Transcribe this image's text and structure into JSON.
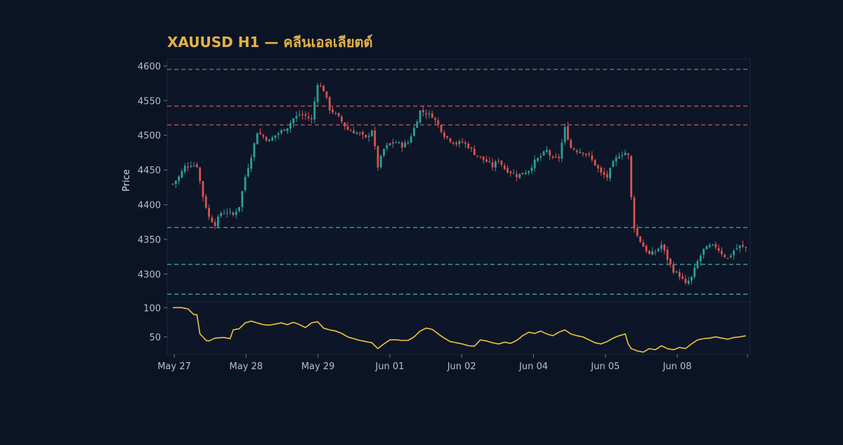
{
  "chart_data": {
    "type": "candlestick",
    "title": "XAUUSD H1 — คลีนเอลเลียตต์",
    "ylabel": "Price",
    "ylim": [
      4260,
      4610
    ],
    "yticks": [
      4300,
      4350,
      4400,
      4450,
      4500,
      4550,
      4600
    ],
    "resistance_levels": [
      4595,
      4542,
      4515
    ],
    "support_levels": [
      4367,
      4314,
      4271
    ],
    "colors": {
      "background": "#0b1424",
      "panel": "#0c1628",
      "up": "#2aa198",
      "down": "#d9534f",
      "resistance": "#c0504d",
      "support": "#3a9d95",
      "oscillator": "#f2c23a",
      "title": "#e2b24a",
      "text": "#b5bfcc"
    },
    "x_dates": [
      "May 27",
      "May 28",
      "May 29",
      "Jun 01",
      "Jun 02",
      "Jun 04",
      "Jun 05",
      "Jun 08"
    ],
    "close_path": [
      [
        0,
        4430
      ],
      [
        2,
        4440
      ],
      [
        4,
        4455
      ],
      [
        6,
        4458
      ],
      [
        8,
        4456
      ],
      [
        10,
        4412
      ],
      [
        12,
        4382
      ],
      [
        14,
        4372
      ],
      [
        16,
        4388
      ],
      [
        18,
        4390
      ],
      [
        20,
        4385
      ],
      [
        22,
        4398
      ],
      [
        24,
        4440
      ],
      [
        26,
        4470
      ],
      [
        28,
        4505
      ],
      [
        30,
        4498
      ],
      [
        32,
        4492
      ],
      [
        34,
        4500
      ],
      [
        36,
        4506
      ],
      [
        38,
        4512
      ],
      [
        40,
        4524
      ],
      [
        42,
        4530
      ],
      [
        44,
        4528
      ],
      [
        46,
        4522
      ],
      [
        48,
        4575
      ],
      [
        50,
        4565
      ],
      [
        52,
        4538
      ],
      [
        54,
        4530
      ],
      [
        56,
        4520
      ],
      [
        58,
        4508
      ],
      [
        60,
        4505
      ],
      [
        62,
        4502
      ],
      [
        64,
        4495
      ],
      [
        66,
        4508
      ],
      [
        68,
        4455
      ],
      [
        70,
        4480
      ],
      [
        72,
        4488
      ],
      [
        74,
        4490
      ],
      [
        76,
        4485
      ],
      [
        78,
        4490
      ],
      [
        80,
        4510
      ],
      [
        82,
        4535
      ],
      [
        84,
        4532
      ],
      [
        86,
        4528
      ],
      [
        88,
        4515
      ],
      [
        90,
        4500
      ],
      [
        92,
        4493
      ],
      [
        94,
        4488
      ],
      [
        96,
        4490
      ],
      [
        98,
        4484
      ],
      [
        100,
        4474
      ],
      [
        102,
        4468
      ],
      [
        104,
        4462
      ],
      [
        106,
        4455
      ],
      [
        108,
        4465
      ],
      [
        110,
        4452
      ],
      [
        112,
        4447
      ],
      [
        114,
        4442
      ],
      [
        116,
        4445
      ],
      [
        118,
        4450
      ],
      [
        120,
        4462
      ],
      [
        122,
        4470
      ],
      [
        124,
        4478
      ],
      [
        126,
        4465
      ],
      [
        128,
        4468
      ],
      [
        130,
        4510
      ],
      [
        132,
        4482
      ],
      [
        134,
        4478
      ],
      [
        136,
        4476
      ],
      [
        138,
        4470
      ],
      [
        140,
        4458
      ],
      [
        142,
        4445
      ],
      [
        144,
        4440
      ],
      [
        146,
        4460
      ],
      [
        148,
        4472
      ],
      [
        150,
        4475
      ],
      [
        151,
        4470
      ],
      [
        152,
        4410
      ],
      [
        153,
        4368
      ],
      [
        154,
        4355
      ],
      [
        156,
        4340
      ],
      [
        158,
        4328
      ],
      [
        160,
        4332
      ],
      [
        162,
        4342
      ],
      [
        164,
        4322
      ],
      [
        166,
        4305
      ],
      [
        168,
        4298
      ],
      [
        170,
        4285
      ],
      [
        172,
        4295
      ],
      [
        174,
        4318
      ],
      [
        176,
        4335
      ],
      [
        178,
        4340
      ],
      [
        180,
        4340
      ],
      [
        182,
        4330
      ],
      [
        184,
        4322
      ],
      [
        186,
        4334
      ],
      [
        188,
        4340
      ],
      [
        190,
        4338
      ]
    ],
    "oscillator": {
      "ylim": [
        20,
        110
      ],
      "yticks": [
        50,
        100
      ],
      "path": [
        [
          0,
          100
        ],
        [
          3,
          100
        ],
        [
          5,
          98
        ],
        [
          7,
          88
        ],
        [
          8,
          88
        ],
        [
          9,
          55
        ],
        [
          10,
          50
        ],
        [
          11,
          44
        ],
        [
          12,
          43
        ],
        [
          14,
          48
        ],
        [
          17,
          49
        ],
        [
          19,
          47
        ],
        [
          20,
          62
        ],
        [
          22,
          64
        ],
        [
          24,
          74
        ],
        [
          26,
          77
        ],
        [
          28,
          74
        ],
        [
          30,
          71
        ],
        [
          32,
          70
        ],
        [
          34,
          72
        ],
        [
          36,
          74
        ],
        [
          38,
          71
        ],
        [
          40,
          75
        ],
        [
          42,
          71
        ],
        [
          44,
          66
        ],
        [
          46,
          74
        ],
        [
          48,
          76
        ],
        [
          50,
          65
        ],
        [
          52,
          62
        ],
        [
          54,
          60
        ],
        [
          56,
          56
        ],
        [
          58,
          50
        ],
        [
          60,
          47
        ],
        [
          62,
          44
        ],
        [
          64,
          42
        ],
        [
          66,
          40
        ],
        [
          68,
          30
        ],
        [
          70,
          38
        ],
        [
          72,
          45
        ],
        [
          74,
          45
        ],
        [
          76,
          44
        ],
        [
          78,
          44
        ],
        [
          80,
          50
        ],
        [
          82,
          60
        ],
        [
          84,
          65
        ],
        [
          86,
          63
        ],
        [
          88,
          55
        ],
        [
          90,
          48
        ],
        [
          92,
          42
        ],
        [
          94,
          40
        ],
        [
          96,
          38
        ],
        [
          98,
          35
        ],
        [
          100,
          34
        ],
        [
          102,
          45
        ],
        [
          104,
          43
        ],
        [
          106,
          40
        ],
        [
          108,
          38
        ],
        [
          110,
          41
        ],
        [
          112,
          39
        ],
        [
          114,
          44
        ],
        [
          116,
          52
        ],
        [
          118,
          58
        ],
        [
          120,
          56
        ],
        [
          122,
          60
        ],
        [
          124,
          55
        ],
        [
          126,
          52
        ],
        [
          128,
          58
        ],
        [
          130,
          62
        ],
        [
          132,
          55
        ],
        [
          134,
          52
        ],
        [
          136,
          50
        ],
        [
          138,
          45
        ],
        [
          140,
          40
        ],
        [
          142,
          38
        ],
        [
          144,
          42
        ],
        [
          146,
          48
        ],
        [
          148,
          52
        ],
        [
          150,
          55
        ],
        [
          151,
          38
        ],
        [
          152,
          30
        ],
        [
          154,
          26
        ],
        [
          156,
          24
        ],
        [
          158,
          30
        ],
        [
          160,
          28
        ],
        [
          162,
          35
        ],
        [
          164,
          30
        ],
        [
          166,
          28
        ],
        [
          168,
          32
        ],
        [
          170,
          30
        ],
        [
          172,
          38
        ],
        [
          174,
          45
        ],
        [
          176,
          47
        ],
        [
          178,
          48
        ],
        [
          180,
          50
        ],
        [
          182,
          48
        ],
        [
          184,
          46
        ],
        [
          186,
          49
        ],
        [
          188,
          50
        ],
        [
          190,
          52
        ]
      ]
    }
  }
}
